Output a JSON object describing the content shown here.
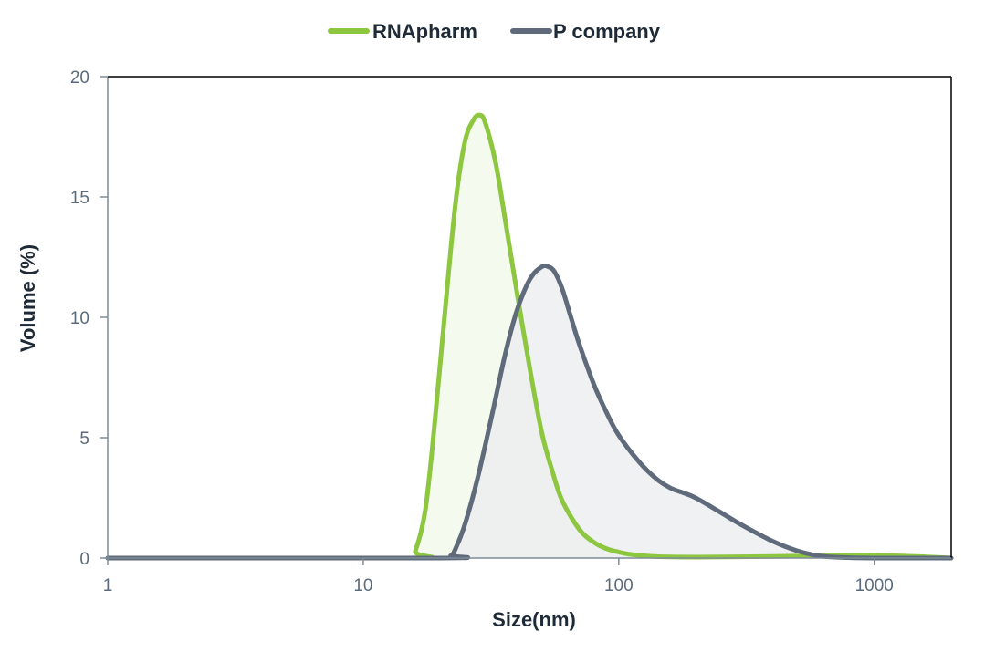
{
  "chart_data": {
    "type": "area",
    "xlabel": "Size(nm)",
    "ylabel": "Volume (%)",
    "xscale": "log",
    "xlim": [
      1,
      2000
    ],
    "ylim": [
      0,
      20
    ],
    "xticks": [
      1,
      10,
      100,
      1000
    ],
    "xtick_labels": [
      "1",
      "10",
      "100",
      "1000"
    ],
    "yticks": [
      0,
      5,
      10,
      15,
      20
    ],
    "ytick_labels": [
      "0",
      "5",
      "10",
      "15",
      "20"
    ],
    "legend_position": "top-center",
    "grid": false,
    "series": [
      {
        "name": "RNApharm",
        "color": "#8dc63f",
        "fill": "#f1f8e8",
        "x": [
          1,
          15,
          16,
          17.5,
          19,
          21,
          23,
          25,
          27,
          28.5,
          30,
          33,
          36,
          40,
          45,
          50,
          55,
          60,
          70,
          80,
          90,
          100,
          110,
          130,
          150,
          200,
          300,
          500,
          800,
          1000,
          1500,
          2000
        ],
        "y": [
          0,
          0,
          0.3,
          2.0,
          5.5,
          10.5,
          14.8,
          17.3,
          18.2,
          18.4,
          18.1,
          16.4,
          14.0,
          11.0,
          7.8,
          5.2,
          3.6,
          2.4,
          1.2,
          0.65,
          0.38,
          0.25,
          0.16,
          0.08,
          0.05,
          0.04,
          0.05,
          0.08,
          0.12,
          0.12,
          0.06,
          0
        ]
      },
      {
        "name": "P company",
        "color": "#5f6b7a",
        "fill": "#e9ecef",
        "x": [
          1,
          20,
          22,
          23,
          25,
          28,
          32,
          36,
          40,
          45,
          50,
          53,
          56,
          60,
          65,
          70,
          80,
          90,
          100,
          120,
          140,
          160,
          180,
          200,
          250,
          300,
          400,
          500,
          600,
          700,
          1000,
          2000
        ],
        "y": [
          0,
          0,
          0.1,
          0.4,
          1.4,
          3.3,
          6.0,
          8.5,
          10.3,
          11.6,
          12.1,
          12.1,
          11.9,
          11.2,
          10.0,
          8.9,
          7.2,
          6.0,
          5.1,
          4.0,
          3.3,
          2.9,
          2.7,
          2.5,
          1.9,
          1.4,
          0.7,
          0.3,
          0.1,
          0.04,
          0,
          0
        ]
      }
    ]
  }
}
